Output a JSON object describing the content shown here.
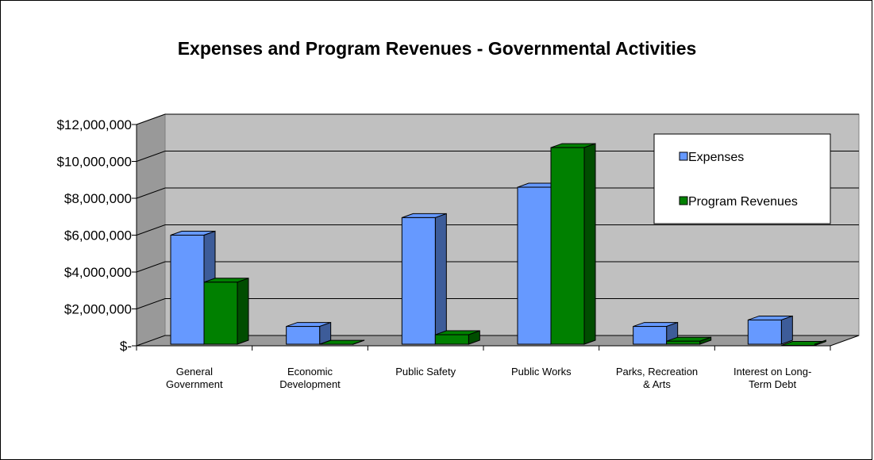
{
  "chart_data": {
    "type": "bar",
    "title": "Expenses and Program Revenues - Governmental Activities",
    "categories": [
      [
        "General",
        "Government"
      ],
      [
        "Economic",
        "Development"
      ],
      [
        "Public Safety"
      ],
      [
        "Public Works"
      ],
      [
        "Parks, Recreation",
        "& Arts"
      ],
      [
        "Interest on Long-",
        "Term Debt"
      ]
    ],
    "series": [
      {
        "name": "Expenses",
        "color": "#6699ff",
        "values": [
          6000000,
          1050000,
          6950000,
          8600000,
          1050000,
          1400000
        ]
      },
      {
        "name": "Program Revenues",
        "color": "#008000",
        "values": [
          3450000,
          80000,
          600000,
          10750000,
          250000,
          20000
        ]
      }
    ],
    "y_ticks": [
      "$-",
      "$2,000,000",
      "$4,000,000",
      "$6,000,000",
      "$8,000,000",
      "$10,000,000",
      "$12,000,000"
    ],
    "ylim": [
      0,
      12000000
    ],
    "grid": true,
    "legend": "top-right"
  }
}
